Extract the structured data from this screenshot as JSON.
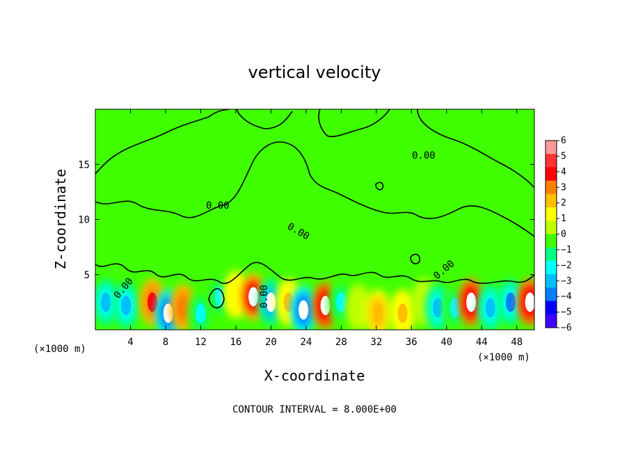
{
  "chart_data": {
    "type": "heatmap",
    "title": "vertical velocity",
    "xlabel": "X-coordinate",
    "ylabel": "Z-coordinate",
    "x_unit": "(×1000 m)",
    "x_ticks": [
      4,
      8,
      12,
      16,
      20,
      24,
      28,
      32,
      36,
      40,
      44,
      48
    ],
    "y_ticks": [
      5,
      10,
      15
    ],
    "xlim": [
      0,
      50
    ],
    "ylim": [
      0,
      20
    ],
    "colorbar": {
      "ticks": [
        6,
        5,
        4,
        3,
        2,
        1,
        0,
        -1,
        -2,
        -3,
        -4,
        -5,
        -6
      ],
      "colors": [
        "#ff9999",
        "#ff3333",
        "#ff0000",
        "#ff8000",
        "#ffbf00",
        "#ffff00",
        "#bfff00",
        "#40ff00",
        "#00ff80",
        "#00ffff",
        "#00bfff",
        "#0080ff",
        "#0000ff",
        "#4000ff"
      ]
    },
    "contour_labels": [
      "0.00",
      "0.00",
      "0.00",
      "0.00",
      "0.00",
      "0.00"
    ],
    "contour_interval_text": "CONTOUR INTERVAL = 8.000E+00",
    "cells": [
      {
        "x": 1.2,
        "z": 2.5,
        "w": -3.5
      },
      {
        "x": 3.5,
        "z": 2.2,
        "w": -3.8
      },
      {
        "x": 6.5,
        "z": 2.5,
        "w": 4.5
      },
      {
        "x": 8.3,
        "z": 1.5,
        "w": -6
      },
      {
        "x": 10.0,
        "z": 2.0,
        "w": 3.5
      },
      {
        "x": 12.0,
        "z": 1.5,
        "w": -3
      },
      {
        "x": 14.2,
        "z": 3.0,
        "w": -3.2
      },
      {
        "x": 16.0,
        "z": 3.2,
        "w": 1.5
      },
      {
        "x": 18.0,
        "z": 3.0,
        "w": 5.5
      },
      {
        "x": 20.0,
        "z": 2.5,
        "w": -5.5
      },
      {
        "x": 22.0,
        "z": 2.5,
        "w": 2.0
      },
      {
        "x": 23.7,
        "z": 1.8,
        "w": -6
      },
      {
        "x": 26.2,
        "z": 2.2,
        "w": 6
      },
      {
        "x": 28.0,
        "z": 2.5,
        "w": -2.5
      },
      {
        "x": 30.0,
        "z": 2.0,
        "w": 0.5
      },
      {
        "x": 32.2,
        "z": 1.5,
        "w": 2.5
      },
      {
        "x": 35.0,
        "z": 1.5,
        "w": 2.0
      },
      {
        "x": 37.5,
        "z": 2.5,
        "w": 0.3
      },
      {
        "x": 39.0,
        "z": 2.0,
        "w": -3.5
      },
      {
        "x": 41.0,
        "z": 2.0,
        "w": -2.8
      },
      {
        "x": 42.8,
        "z": 2.5,
        "w": 6
      },
      {
        "x": 45.0,
        "z": 2.0,
        "w": -3.8
      },
      {
        "x": 47.3,
        "z": 2.5,
        "w": -4.5
      },
      {
        "x": 49.5,
        "z": 2.5,
        "w": 6
      }
    ]
  }
}
